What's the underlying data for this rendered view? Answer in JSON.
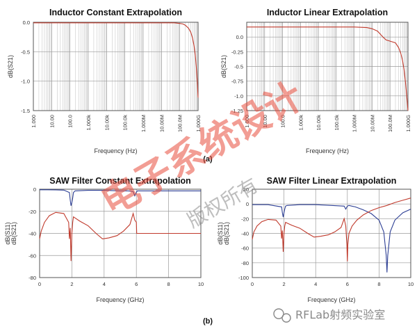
{
  "caption_a": "(a)",
  "caption_b": "(b)",
  "watermark": {
    "main": "电子系统设计",
    "sub": "版权所有",
    "brand": "RFLab射频实验室"
  },
  "colors": {
    "s21": "#c0392b",
    "s11": "#2c3e94",
    "grid": "#bdbdbd",
    "frame": "#555555"
  },
  "chart_data": [
    {
      "type": "line",
      "title": "Inductor Constant Extrapolation",
      "xlabel": "Frequency (Hz)",
      "ylabel": "dB(S21)",
      "x_scale": "log",
      "xlim": [
        1,
        1000000000
      ],
      "ylim": [
        -1.5,
        0
      ],
      "xticks": [
        1,
        10,
        100,
        1000,
        10000,
        100000,
        1000000,
        10000000,
        100000000,
        1000000000
      ],
      "xtick_labels": [
        "1.000",
        "10.00",
        "100.0",
        "1.000k",
        "10.00k",
        "100.0k",
        "1.000M",
        "10.00M",
        "100.0M",
        "1.000G"
      ],
      "yticks": [
        0.0,
        -0.5,
        -1.0,
        -1.5
      ],
      "ytick_labels": [
        "0.0",
        "-0.5",
        "-1.0",
        "-1.5"
      ],
      "grid": true,
      "series": [
        {
          "color": "#c0392b",
          "x": [
            1,
            10000000,
            50000000,
            100000000,
            150000000,
            200000000,
            300000000,
            400000000,
            500000000,
            600000000,
            700000000,
            800000000,
            900000000,
            1000000000
          ],
          "y": [
            -0.01,
            -0.01,
            -0.01,
            -0.02,
            -0.03,
            -0.05,
            -0.1,
            -0.17,
            -0.27,
            -0.4,
            -0.55,
            -0.75,
            -1.0,
            -1.28
          ]
        }
      ]
    },
    {
      "type": "line",
      "title": "Inductor Linear Extrapolation",
      "xlabel": "Frequency (Hz)",
      "ylabel": "dB(S21)",
      "x_scale": "log",
      "xlim": [
        1,
        1000000000
      ],
      "ylim": [
        -1.25,
        0.25
      ],
      "xticks": [
        1,
        10,
        100,
        1000,
        10000,
        100000,
        1000000,
        10000000,
        100000000,
        1000000000
      ],
      "xtick_labels": [
        "1.000",
        "10.00",
        "100.0",
        "1.000k",
        "10.00k",
        "100.0k",
        "1.000M",
        "10.00M",
        "100.0M",
        "1.000G"
      ],
      "yticks": [
        0.0,
        -0.25,
        -0.5,
        -0.75,
        -1.0,
        -1.25
      ],
      "ytick_labels": [
        "0.0",
        "-0.25",
        "-0.5",
        "-0.75",
        "-1.0",
        "-1.25"
      ],
      "grid": true,
      "series": [
        {
          "color": "#c0392b",
          "x": [
            1,
            1000000,
            5000000,
            10000000,
            20000000,
            40000000,
            60000000,
            100000000,
            200000000,
            300000000,
            400000000,
            500000000,
            600000000,
            700000000,
            800000000,
            900000000,
            1000000000
          ],
          "y": [
            0.17,
            0.17,
            0.16,
            0.14,
            0.1,
            0.0,
            -0.05,
            -0.07,
            -0.1,
            -0.18,
            -0.28,
            -0.4,
            -0.55,
            -0.72,
            -0.9,
            -1.08,
            -1.25
          ]
        }
      ]
    },
    {
      "type": "line",
      "title": "SAW Filter Constant Extrapolation",
      "xlabel": "Frequency (GHz)",
      "ylabel": "dB(S11)",
      "ylabel2": "dB(S21)",
      "xlim": [
        0,
        10
      ],
      "ylim": [
        -80,
        0
      ],
      "xticks": [
        0,
        2,
        4,
        6,
        8,
        10
      ],
      "xtick_labels": [
        "0",
        "2",
        "4",
        "6",
        "8",
        "10"
      ],
      "yticks": [
        0,
        -20,
        -40,
        -60,
        -80
      ],
      "ytick_labels": [
        "0",
        "-20",
        "-40",
        "-60",
        "-80"
      ],
      "grid": true,
      "series": [
        {
          "color": "#2c3e94",
          "x": [
            0,
            0.5,
            1.0,
            1.5,
            1.85,
            1.9,
            1.95,
            2.0,
            2.05,
            2.1,
            2.2,
            3.0,
            4.0,
            5.0,
            5.5,
            5.8,
            5.9,
            6.0,
            6.05,
            6.2,
            7.0,
            8.0,
            9.0,
            10.0
          ],
          "y": [
            -0.5,
            -0.5,
            -0.6,
            -0.8,
            -3,
            -10,
            -15,
            -12,
            -8,
            -3,
            -1.5,
            -1,
            -1,
            -1.5,
            -1.5,
            -2,
            -6,
            -3,
            -1.5,
            -1.5,
            -1.5,
            -1.5,
            -1.5,
            -1.5
          ]
        },
        {
          "color": "#c0392b",
          "x": [
            0,
            0.1,
            0.3,
            0.6,
            1.0,
            1.5,
            1.8,
            1.85,
            1.9,
            1.95,
            2.0,
            2.05,
            2.1,
            2.2,
            2.5,
            3.0,
            3.5,
            3.9,
            4.3,
            4.8,
            5.2,
            5.6,
            5.8,
            5.9,
            6.0,
            6.02,
            7.0,
            8.0,
            9.0,
            10.0
          ],
          "y": [
            -45,
            -38,
            -30,
            -24,
            -21,
            -22,
            -30,
            -45,
            -35,
            -65,
            -40,
            -30,
            -25,
            -26,
            -29,
            -33,
            -40,
            -45,
            -44,
            -42,
            -38,
            -32,
            -22,
            -28,
            -30,
            -40,
            -40,
            -40,
            -40,
            -40
          ]
        }
      ]
    },
    {
      "type": "line",
      "title": "SAW Filter Linear Extrapolation",
      "xlabel": "Frequency (GHz)",
      "ylabel": "dB(S11)",
      "ylabel2": "dB(S21)",
      "xlim": [
        0,
        10
      ],
      "ylim": [
        -100,
        20
      ],
      "xticks": [
        0,
        2,
        4,
        6,
        8,
        10
      ],
      "xtick_labels": [
        "0",
        "2",
        "4",
        "6",
        "8",
        "10"
      ],
      "yticks": [
        20,
        0,
        -20,
        -40,
        -60,
        -80,
        -100
      ],
      "ytick_labels": [
        "20",
        "0",
        "-20",
        "-40",
        "-60",
        "-80",
        "-100"
      ],
      "grid": true,
      "series": [
        {
          "color": "#2c3e94",
          "x": [
            0,
            1.0,
            1.85,
            1.9,
            1.95,
            2.0,
            2.05,
            2.1,
            2.2,
            3.0,
            4.0,
            5.0,
            5.8,
            5.9,
            6.0,
            6.1,
            6.5,
            7.0,
            7.5,
            8.0,
            8.3,
            8.45,
            8.5,
            8.55,
            8.7,
            9.0,
            9.5,
            10.0
          ],
          "y": [
            -1,
            -1,
            -4,
            -12,
            -18,
            -12,
            -7,
            -3,
            -2,
            -1,
            -1,
            -2,
            -3,
            -7,
            -3,
            -2,
            -4,
            -8,
            -13,
            -22,
            -38,
            -70,
            -93,
            -70,
            -38,
            -22,
            -12,
            -7
          ]
        },
        {
          "color": "#c0392b",
          "x": [
            0,
            0.1,
            0.3,
            0.6,
            1.0,
            1.5,
            1.8,
            1.85,
            1.9,
            1.95,
            2.0,
            2.05,
            2.1,
            2.2,
            2.5,
            3.0,
            3.5,
            3.9,
            4.3,
            4.8,
            5.2,
            5.6,
            5.8,
            5.9,
            5.97,
            6.0,
            6.03,
            6.1,
            6.3,
            6.6,
            7.0,
            7.5,
            8.0,
            8.5,
            9.0,
            9.5,
            10.0
          ],
          "y": [
            -48,
            -38,
            -30,
            -24,
            -21,
            -22,
            -30,
            -47,
            -36,
            -65,
            -40,
            -30,
            -25,
            -26,
            -29,
            -33,
            -40,
            -45,
            -44,
            -42,
            -38,
            -32,
            -20,
            -30,
            -55,
            -78,
            -55,
            -40,
            -30,
            -22,
            -15,
            -9,
            -5,
            -2,
            2,
            5,
            8
          ]
        }
      ]
    }
  ]
}
